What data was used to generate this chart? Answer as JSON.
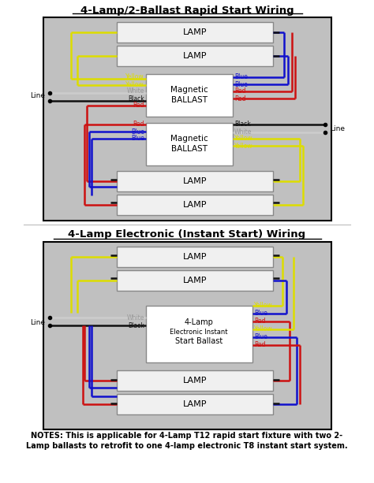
{
  "title1": "4-Lamp/2-Ballast Rapid Start Wiring",
  "title2": "4-Lamp Electronic (Instant Start) Wiring",
  "notes": "NOTES: This is applicable for 4-Lamp T12 rapid start fixture with two 2-\nLamp ballasts to retrofit to one 4-lamp electronic T8 instant start system.",
  "bg_color": "#c0c0c0",
  "lamp_color": "#f0f0f0",
  "lamp_edge": "#888888",
  "ballast_color": "#ffffff",
  "ballast_edge": "#888888",
  "page_bg": "#ffffff",
  "wy": "#dddd00",
  "wb": "#1111cc",
  "wr": "#cc1111",
  "ww": "#cccccc",
  "wk": "#111111"
}
